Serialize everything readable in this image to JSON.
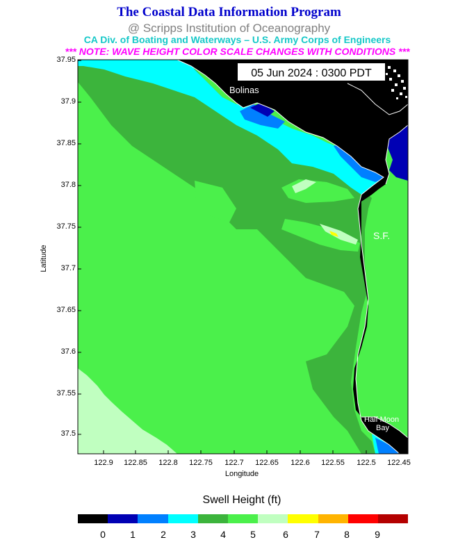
{
  "header": {
    "title": "The Coastal Data Information Program",
    "subtitle": "@ Scripps Institution of Oceanography",
    "sponsors": "CA Div. of Boating and Waterways – U.S. Army Corps of Engineers",
    "note": "*** NOTE: WAVE HEIGHT COLOR SCALE CHANGES WITH CONDITIONS ***"
  },
  "map": {
    "timestamp": "05 Jun 2024 : 0300 PDT",
    "places": {
      "bolinas": "Bolinas",
      "sf": "S.F.",
      "half_moon_1": "Half Moon",
      "half_moon_2": "Bay"
    },
    "xlabel": "Longitude",
    "ylabel": "Latitude",
    "lat_ticks": [
      "37.95",
      "37.9",
      "37.85",
      "37.8",
      "37.75",
      "37.7",
      "37.65",
      "37.6",
      "37.55",
      "37.5"
    ],
    "lon_ticks": [
      "122.9",
      "122.85",
      "122.8",
      "122.75",
      "122.7",
      "122.65",
      "122.6",
      "122.55",
      "122.5",
      "122.45"
    ]
  },
  "legend": {
    "title": "Swell Height (ft)",
    "colors": [
      "#000000",
      "#0000b4",
      "#0080ff",
      "#00ffff",
      "#3cb43c",
      "#4bf04b",
      "#c0ffc0",
      "#ffff00",
      "#ffb400",
      "#ff0000",
      "#b40000"
    ],
    "labels": [
      "0",
      "1",
      "2",
      "3",
      "4",
      "5",
      "6",
      "7",
      "8",
      "9"
    ]
  }
}
